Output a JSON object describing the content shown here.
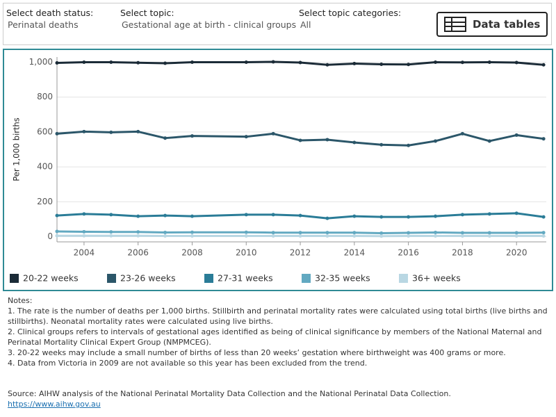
{
  "filters": [
    {
      "label": "Select death status:",
      "value": "Perinatal deaths"
    },
    {
      "label": "Select topic:",
      "value": "Gestational age at birth - clinical groups"
    },
    {
      "label": "Select topic categories:",
      "value": "All"
    }
  ],
  "button": "Data tables",
  "chart_data": {
    "type": "line",
    "y_label": "Per 1,000 births",
    "x": [
      2003,
      2004,
      2005,
      2006,
      2007,
      2008,
      2010,
      2011,
      2012,
      2013,
      2014,
      2015,
      2016,
      2017,
      2018,
      2019,
      2020,
      2021
    ],
    "xlim": [
      2003,
      2021.1
    ],
    "xticks": [
      2004,
      2006,
      2008,
      2010,
      2012,
      2014,
      2016,
      2018,
      2020
    ],
    "ylim": [
      -30,
      1030
    ],
    "yticks": [
      0,
      200,
      400,
      600,
      800,
      {
        "value": 1000,
        "label": "1,000"
      }
    ],
    "grid": true,
    "series": [
      {
        "name": "20-22 weeks",
        "color": "#1b2b37",
        "values": [
          996,
          1000,
          1000,
          997,
          994,
          1000,
          1000,
          1002,
          998,
          985,
          992,
          988,
          987,
          1000,
          999,
          1000,
          998,
          985
        ]
      },
      {
        "name": "23-26 weeks",
        "color": "#2b5669",
        "values": [
          590,
          602,
          598,
          602,
          565,
          577,
          573,
          590,
          552,
          556,
          540,
          527,
          523,
          548,
          590,
          548,
          582,
          561
        ]
      },
      {
        "name": "27-31 weeks",
        "color": "#2a7c97",
        "values": [
          121,
          130,
          126,
          117,
          121,
          117,
          126,
          126,
          121,
          105,
          117,
          113,
          113,
          117,
          126,
          130,
          134,
          113
        ]
      },
      {
        "name": "32-35 weeks",
        "color": "#62a9c1",
        "values": [
          30,
          28,
          27,
          27,
          24,
          25,
          25,
          23,
          23,
          23,
          23,
          20,
          22,
          24,
          22,
          22,
          22,
          23
        ]
      },
      {
        "name": "36+ weeks",
        "color": "#b9d7e3",
        "values": [
          5,
          5,
          5,
          5,
          4,
          4,
          4,
          4,
          4,
          4,
          4,
          3,
          4,
          4,
          4,
          4,
          4,
          4
        ]
      }
    ]
  },
  "notes": {
    "title": "Notes:",
    "items": [
      "1. The rate is the number of deaths per 1,000 births. Stillbirth and perinatal mortality rates were calculated using total births (live births and stillbirths). Neonatal mortality rates were calculated using live births.",
      "2. Clinical groups refers to intervals of gestational ages identified as being of clinical significance by members of the National Maternal and Perinatal Mortality Clinical Expert Group (NMPMCEG).",
      "3. 20-22 weeks may include a small number of births of less than 20 weeks’ gestation where birthweight was 400 grams or more.",
      "4. Data from Victoria in 2009 are not available so this year has been excluded from the trend."
    ]
  },
  "source": {
    "text": "Source: AIHW analysis of the National Perinatal Mortality Data Collection and the National Perinatal Data Collection.",
    "link": "https://www.aihw.gov.au"
  }
}
